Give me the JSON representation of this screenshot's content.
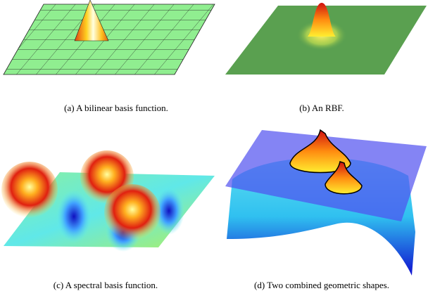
{
  "figure": {
    "panels": [
      {
        "caption": "(a)  A bilinear basis function."
      },
      {
        "caption": "(b)  An RBF."
      },
      {
        "caption": "(c)  A spectral basis function."
      },
      {
        "caption": "(d)  Two combined geometric shapes."
      }
    ]
  }
}
